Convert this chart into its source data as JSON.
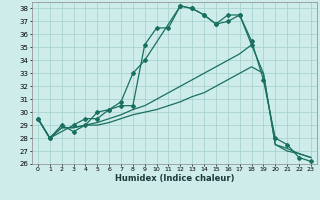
{
  "xlabel": "Humidex (Indice chaleur)",
  "xlim": [
    -0.5,
    23.5
  ],
  "ylim": [
    26,
    38.5
  ],
  "yticks": [
    26,
    27,
    28,
    29,
    30,
    31,
    32,
    33,
    34,
    35,
    36,
    37,
    38
  ],
  "xticks": [
    0,
    1,
    2,
    3,
    4,
    5,
    6,
    7,
    8,
    9,
    10,
    11,
    12,
    13,
    14,
    15,
    16,
    17,
    18,
    19,
    20,
    21,
    22,
    23
  ],
  "bg_color": "#ceecea",
  "grid_color": "#aad4d0",
  "line_color": "#1a7060",
  "line1": {
    "x": [
      0,
      1,
      2,
      3,
      4,
      5,
      6,
      7,
      8,
      9,
      10,
      11,
      12,
      13,
      14,
      15,
      16,
      17,
      18
    ],
    "y": [
      29.5,
      28.0,
      29.0,
      28.5,
      29.0,
      30.0,
      30.2,
      30.5,
      30.5,
      35.2,
      36.5,
      36.5,
      38.2,
      38.0,
      37.5,
      36.8,
      37.5,
      37.5,
      35.2
    ]
  },
  "line2": {
    "x": [
      0,
      1,
      3,
      4,
      5,
      6,
      7,
      8,
      9,
      12,
      13,
      14,
      15,
      16,
      17,
      18,
      19,
      20,
      21,
      22,
      23
    ],
    "y": [
      29.5,
      28.0,
      29.0,
      29.5,
      29.5,
      30.2,
      30.8,
      33.0,
      34.0,
      38.2,
      38.0,
      37.5,
      36.8,
      37.0,
      37.5,
      35.5,
      32.5,
      28.0,
      27.5,
      26.5,
      26.2
    ]
  },
  "line3": {
    "x": [
      0,
      1,
      2,
      3,
      4,
      5,
      6,
      7,
      8,
      9,
      10,
      11,
      12,
      13,
      14,
      15,
      16,
      17,
      18,
      19,
      20,
      21,
      22,
      23
    ],
    "y": [
      29.5,
      28.0,
      28.8,
      28.8,
      29.0,
      29.0,
      29.2,
      29.5,
      29.8,
      30.0,
      30.2,
      30.5,
      30.8,
      31.2,
      31.5,
      32.0,
      32.5,
      33.0,
      33.5,
      33.0,
      27.5,
      27.2,
      26.8,
      26.5
    ]
  },
  "line4": {
    "x": [
      0,
      1,
      2,
      3,
      4,
      5,
      6,
      7,
      8,
      9,
      10,
      11,
      12,
      13,
      14,
      15,
      16,
      17,
      18,
      19,
      20,
      21,
      22,
      23
    ],
    "y": [
      29.5,
      28.0,
      28.8,
      28.8,
      29.0,
      29.2,
      29.5,
      29.8,
      30.2,
      30.5,
      31.0,
      31.5,
      32.0,
      32.5,
      33.0,
      33.5,
      34.0,
      34.5,
      35.2,
      33.0,
      27.5,
      27.0,
      26.8,
      26.5
    ]
  }
}
